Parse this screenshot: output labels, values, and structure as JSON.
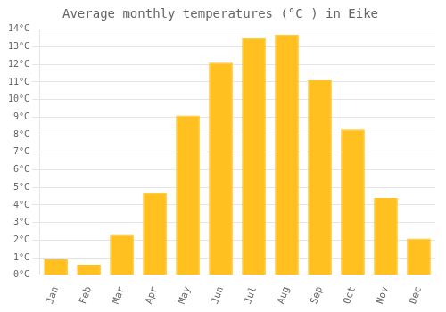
{
  "chart_data": {
    "type": "bar",
    "title": "Average monthly temperatures (°C ) in Eike",
    "categories": [
      "Jan",
      "Feb",
      "Mar",
      "Apr",
      "May",
      "Jun",
      "Jul",
      "Aug",
      "Sep",
      "Oct",
      "Nov",
      "Dec"
    ],
    "values": [
      0.9,
      0.6,
      2.3,
      4.7,
      9.1,
      12.1,
      13.5,
      13.7,
      11.1,
      8.3,
      4.4,
      2.1
    ],
    "color": "#FFC020",
    "ylim": [
      0,
      14
    ],
    "yticks": [
      {
        "value": 0,
        "label": "0°C"
      },
      {
        "value": 1,
        "label": "1°C"
      },
      {
        "value": 2,
        "label": "2°C"
      },
      {
        "value": 3,
        "label": "3°C"
      },
      {
        "value": 4,
        "label": "4°C"
      },
      {
        "value": 5,
        "label": "5°C"
      },
      {
        "value": 6,
        "label": "6°C"
      },
      {
        "value": 7,
        "label": "7°C"
      },
      {
        "value": 8,
        "label": "8°C"
      },
      {
        "value": 9,
        "label": "9°C"
      },
      {
        "value": 10,
        "label": "10°C"
      },
      {
        "value": 11,
        "label": "11°C"
      },
      {
        "value": 12,
        "label": "12°C"
      },
      {
        "value": 13,
        "label": "13°C"
      },
      {
        "value": 14,
        "label": "14°C"
      }
    ],
    "grid": true
  }
}
